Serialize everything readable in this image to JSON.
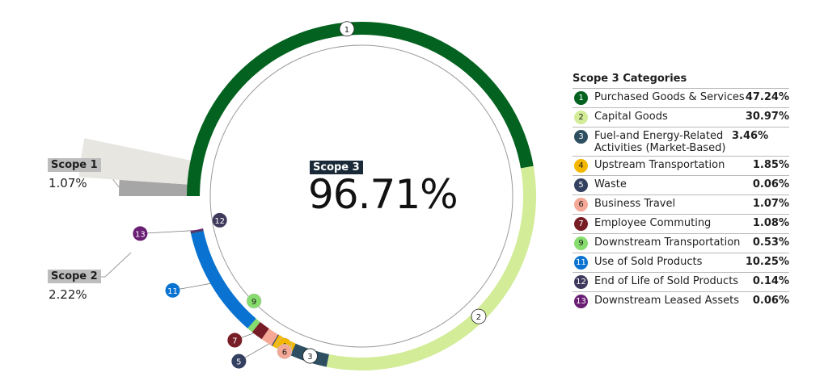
{
  "chart_data": {
    "type": "pie",
    "center": {
      "label": "Scope 3",
      "value": "96.71%"
    },
    "scopes": [
      {
        "name": "Scope 1",
        "value": "1.07%",
        "percent": 1.07,
        "color": "#a6a6a6"
      },
      {
        "name": "Scope 2",
        "value": "2.22%",
        "percent": 2.22,
        "color": "#e7e6e1"
      },
      {
        "name": "Scope 3",
        "value": "96.71%",
        "percent": 96.71,
        "color": "#ffffff"
      }
    ],
    "legend_title": "Scope 3 Categories",
    "categories": [
      {
        "id": "1",
        "name": "Purchased Goods & Services",
        "value": "47.24%",
        "percent": 47.24,
        "color": "#03621f"
      },
      {
        "id": "2",
        "name": "Capital Goods",
        "value": "30.97%",
        "percent": 30.97,
        "color": "#d3ec98"
      },
      {
        "id": "3",
        "name": "Fuel-and Energy-Related Activities (Market-Based)",
        "value": "3.46%",
        "percent": 3.46,
        "color": "#2e4f61"
      },
      {
        "id": "4",
        "name": "Upstream Transportation",
        "value": "1.85%",
        "percent": 1.85,
        "color": "#f3b700"
      },
      {
        "id": "5",
        "name": "Waste",
        "value": "0.06%",
        "percent": 0.06,
        "color": "#33405f"
      },
      {
        "id": "6",
        "name": "Business Travel",
        "value": "1.07%",
        "percent": 1.07,
        "color": "#f4a895"
      },
      {
        "id": "7",
        "name": "Employee Commuting",
        "value": "1.08%",
        "percent": 1.08,
        "color": "#771d25"
      },
      {
        "id": "9",
        "name": "Downstream Transportation",
        "value": "0.53%",
        "percent": 0.53,
        "color": "#86dc6d"
      },
      {
        "id": "11",
        "name": "Use of Sold Products",
        "value": "10.25%",
        "percent": 10.25,
        "color": "#0a73d1"
      },
      {
        "id": "12",
        "name": "End of Life of Sold Products",
        "value": "0.14%",
        "percent": 0.14,
        "color": "#3f3a5c"
      },
      {
        "id": "13",
        "name": "Downstream Leased Assets",
        "value": "0.06%",
        "percent": 0.06,
        "color": "#6a1e74"
      }
    ]
  }
}
